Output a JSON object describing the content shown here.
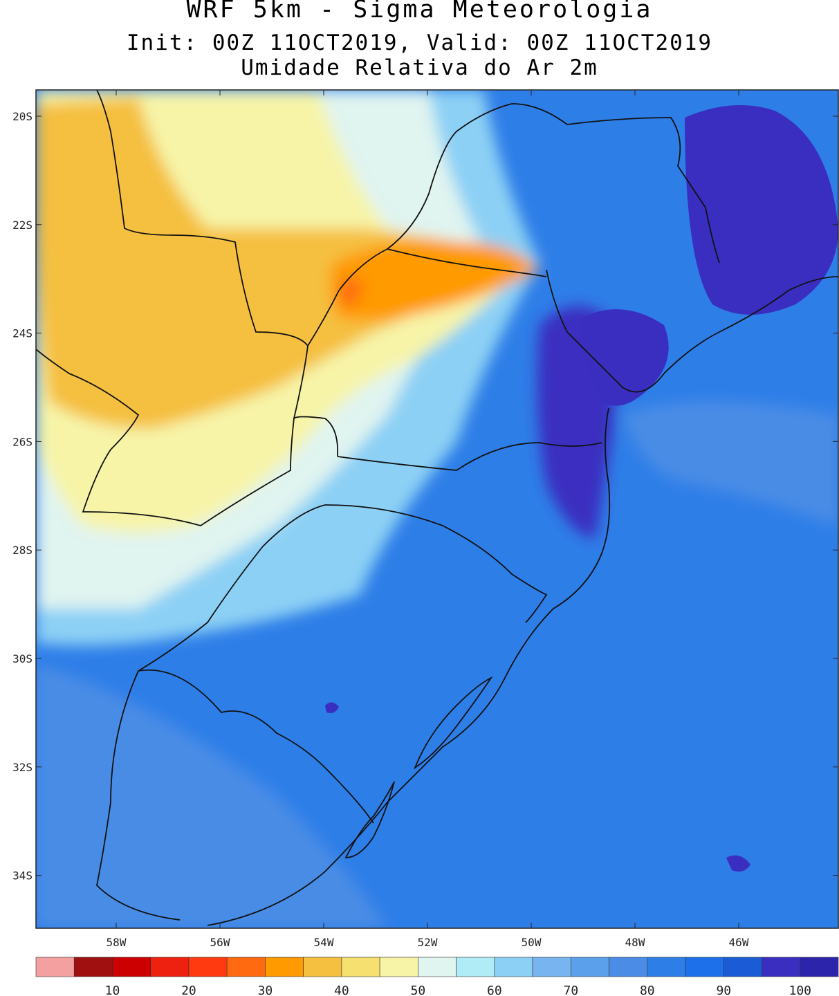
{
  "title": "WRF 5km - Sigma Meteorologia",
  "subtitle": "Init: 00Z 11OCT2019, Valid: 00Z 11OCT2019",
  "variable": "Umidade Relativa do Ar 2m",
  "lat_labels": [
    "20S",
    "22S",
    "24S",
    "26S",
    "28S",
    "30S",
    "32S",
    "34S"
  ],
  "lon_labels": [
    "58W",
    "56W",
    "54W",
    "52W",
    "50W",
    "48W",
    "46W"
  ],
  "colorbar": {
    "colors": [
      "#f5a0a0",
      "#a01010",
      "#cc0000",
      "#ee2010",
      "#ff3a10",
      "#ff6a10",
      "#ff9a00",
      "#f5c040",
      "#f5e070",
      "#f7f4a8",
      "#e0f4f0",
      "#b0ecf6",
      "#8cd0f5",
      "#78b4f0",
      "#5aa0ea",
      "#4a8ce6",
      "#2e7ee8",
      "#1e70ea",
      "#1b5cd6",
      "#3a2ec0",
      "#2c24aa"
    ],
    "labels": [
      "10",
      "20",
      "30",
      "40",
      "50",
      "60",
      "70",
      "80",
      "90",
      "100"
    ]
  },
  "map_field": {
    "background": "#2e7ee8",
    "regions": [
      {
        "color": "#4a8ce6",
        "kind": "moist-offshore"
      },
      {
        "color": "#8cd0f5",
        "kind": "transition"
      },
      {
        "color": "#e0f4f0",
        "kind": "transition-light"
      },
      {
        "color": "#f7f4a8",
        "kind": "dry-west"
      },
      {
        "color": "#f5c040",
        "kind": "dry-core"
      },
      {
        "color": "#ff9a00",
        "kind": "very-dry"
      },
      {
        "color": "#ff6a10",
        "kind": "driest"
      },
      {
        "color": "#3a2ec0",
        "kind": "saturated-coast"
      }
    ]
  }
}
